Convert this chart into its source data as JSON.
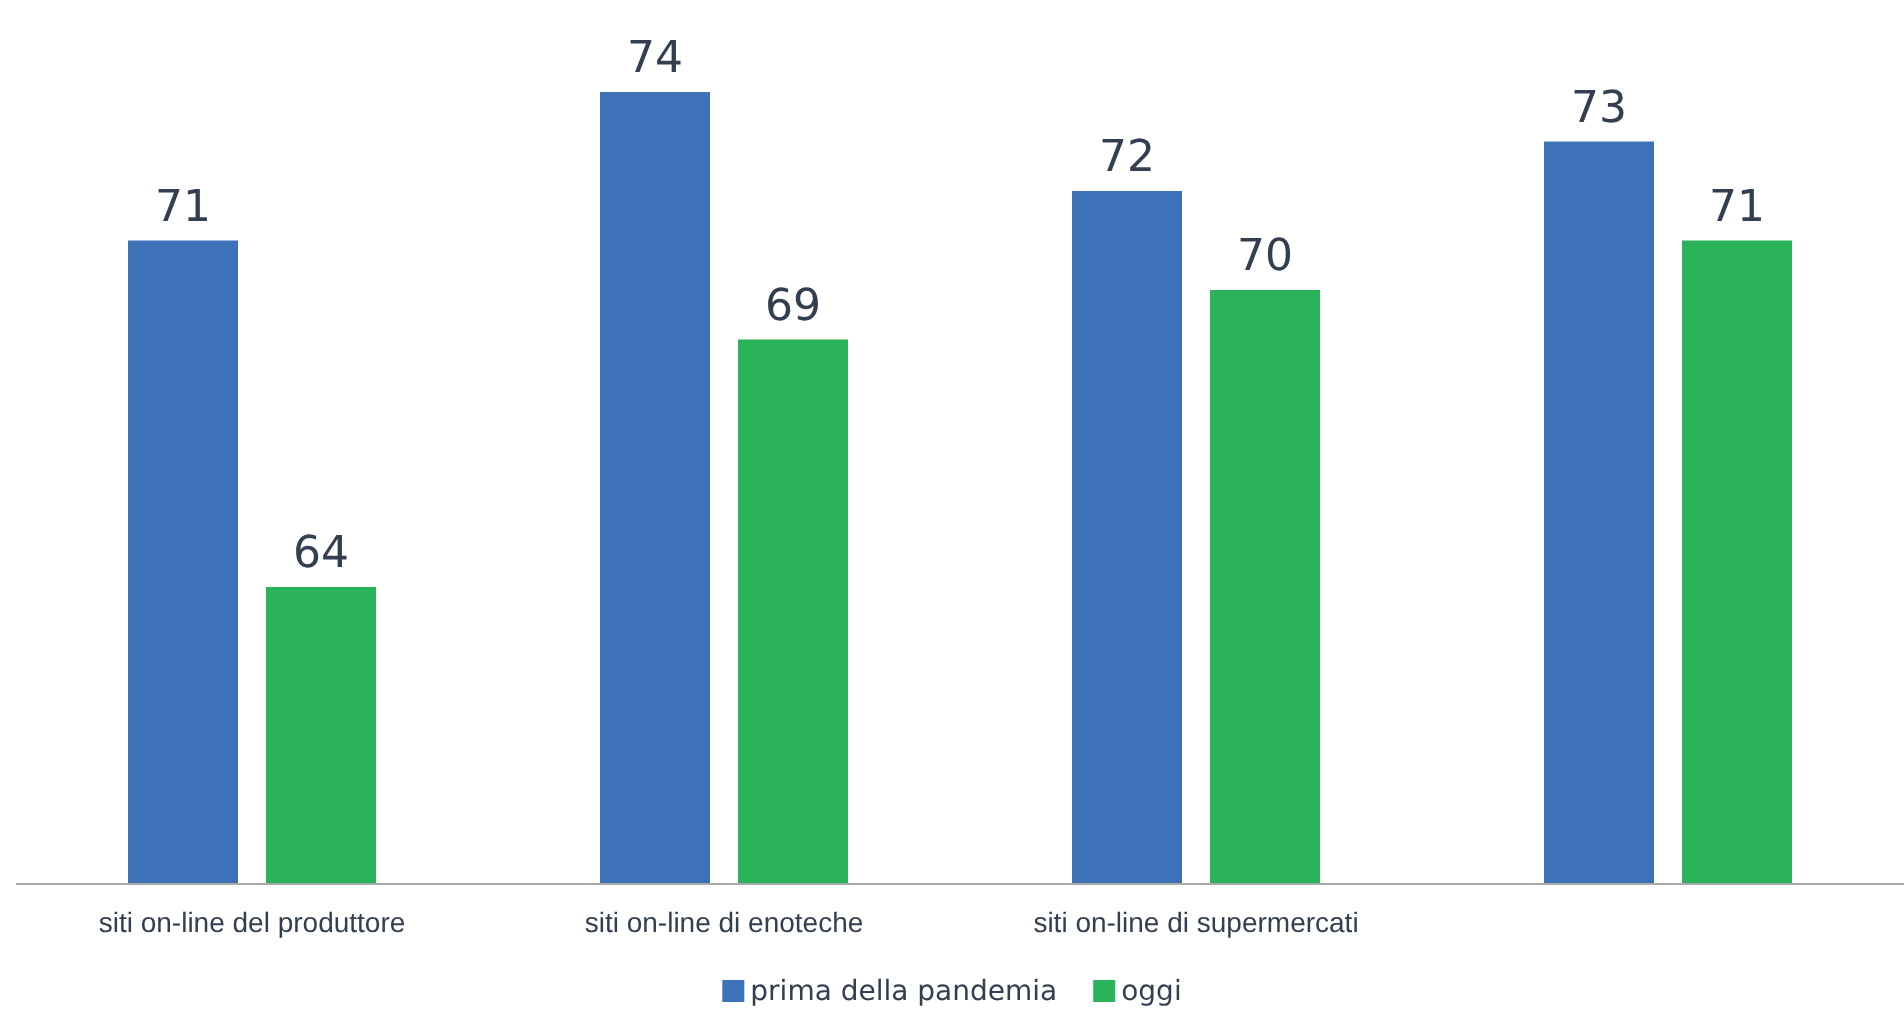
{
  "chart_data": {
    "type": "bar",
    "categories": [
      "siti on-line del produttore",
      "siti on-line di enoteche",
      "siti on-line di supermercati",
      null
    ],
    "series": [
      {
        "name": "prima della pandemia",
        "color": "#3d72b8",
        "values": [
          71,
          74,
          72,
          73
        ]
      },
      {
        "name": "oggi",
        "color": "#2bb35b",
        "values": [
          64,
          69,
          70,
          71
        ]
      }
    ],
    "ylim": [
      58,
      74
    ],
    "data_labels": true,
    "legend": "bottom",
    "grid": false,
    "tick_labels": "x"
  }
}
